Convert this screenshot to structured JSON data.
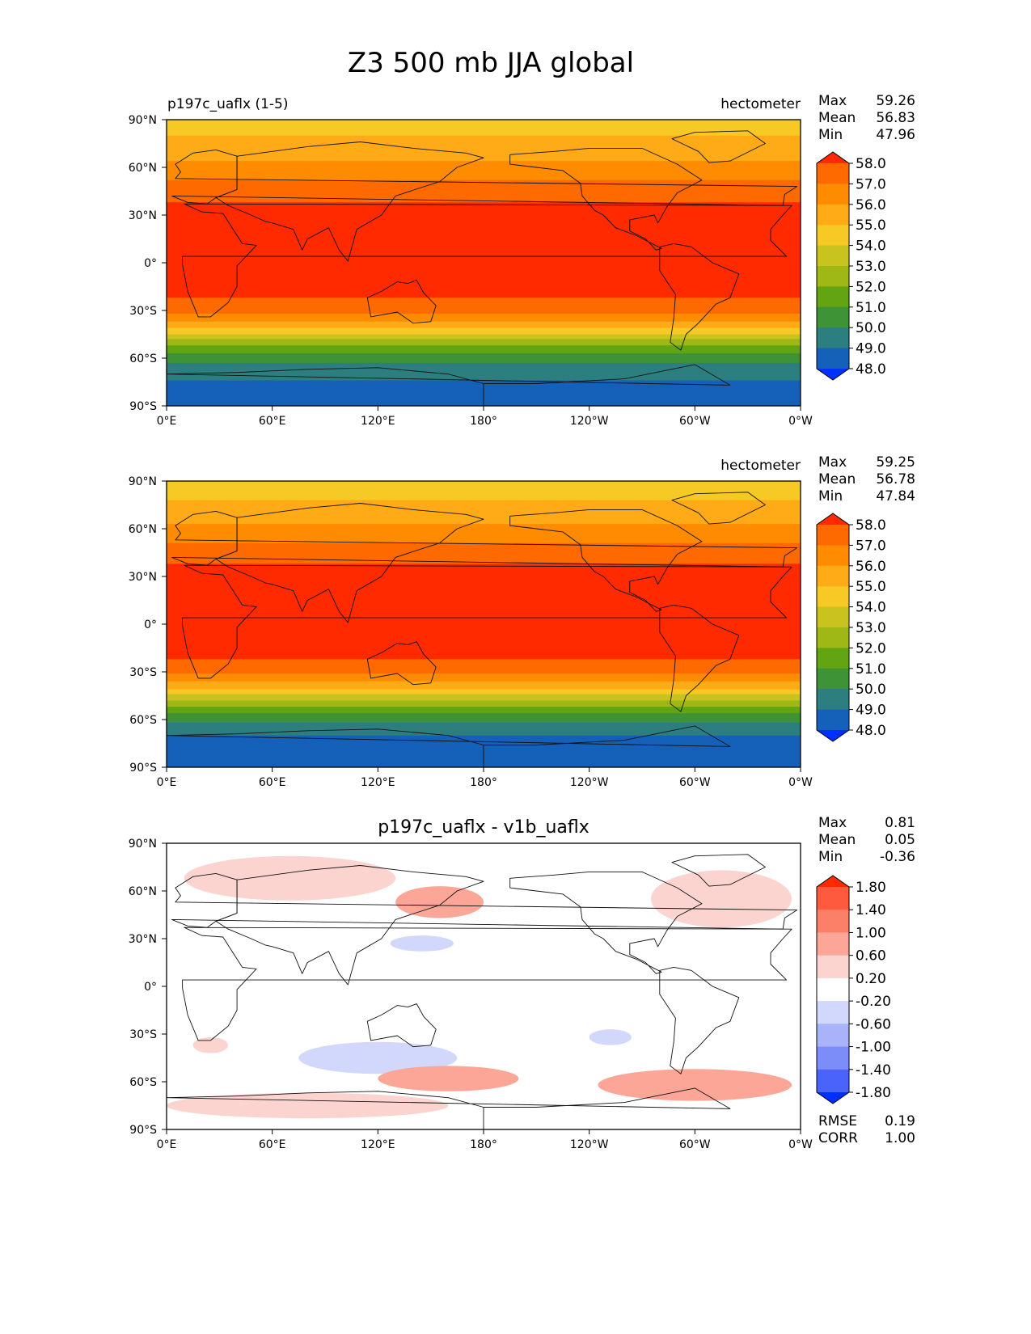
{
  "figure": {
    "title": "Z3 500 mb JJA global"
  },
  "chart_data": [
    {
      "type": "heatmap",
      "panel": "test",
      "title_left": "p197c_uaflx (1-5)",
      "units": "hectometer",
      "stats": {
        "max_label": "Max",
        "max": "59.26",
        "mean_label": "Mean",
        "mean": "56.83",
        "min_label": "Min",
        "min": "47.96"
      },
      "x_ticks": [
        "0°E",
        "60°E",
        "120°E",
        "180°",
        "120°W",
        "60°W",
        "0°W"
      ],
      "y_ticks": [
        "90°N",
        "60°N",
        "30°N",
        "0°",
        "30°S",
        "60°S",
        "90°S"
      ],
      "colorbar": {
        "levels": [
          "58.0",
          "57.0",
          "56.0",
          "55.0",
          "54.0",
          "53.0",
          "52.0",
          "51.0",
          "50.0",
          "49.0",
          "48.0"
        ],
        "colors": [
          "#ff2a00",
          "#ff6a00",
          "#ff8c00",
          "#ffab17",
          "#f7c925",
          "#c9c320",
          "#a0b816",
          "#62a412",
          "#3d9335",
          "#2d7f7f",
          "#1560b8",
          "#0030ff"
        ]
      },
      "zonal_profile": [
        {
          "lat": 90,
          "value": 54.6
        },
        {
          "lat": 75,
          "value": 55.2
        },
        {
          "lat": 60,
          "value": 56.3
        },
        {
          "lat": 45,
          "value": 57.6
        },
        {
          "lat": 30,
          "value": 58.5
        },
        {
          "lat": 0,
          "value": 58.7
        },
        {
          "lat": -15,
          "value": 58.6
        },
        {
          "lat": -30,
          "value": 57.3
        },
        {
          "lat": -40,
          "value": 55.3
        },
        {
          "lat": -50,
          "value": 52.5
        },
        {
          "lat": -60,
          "value": 50.3
        },
        {
          "lat": -70,
          "value": 49.1
        },
        {
          "lat": -90,
          "value": 48.6
        }
      ]
    },
    {
      "type": "heatmap",
      "panel": "reference",
      "title_left": "",
      "units": "hectometer",
      "stats": {
        "max_label": "Max",
        "max": "59.25",
        "mean_label": "Mean",
        "mean": "56.78",
        "min_label": "Min",
        "min": "47.84"
      },
      "x_ticks": [
        "0°E",
        "60°E",
        "120°E",
        "180°",
        "120°W",
        "60°W",
        "0°W"
      ],
      "y_ticks": [
        "90°N",
        "60°N",
        "30°N",
        "0°",
        "30°S",
        "60°S",
        "90°S"
      ],
      "colorbar": {
        "levels": [
          "58.0",
          "57.0",
          "56.0",
          "55.0",
          "54.0",
          "53.0",
          "52.0",
          "51.0",
          "50.0",
          "49.0",
          "48.0"
        ],
        "colors": [
          "#ff2a00",
          "#ff6a00",
          "#ff8c00",
          "#ffab17",
          "#f7c925",
          "#c9c320",
          "#a0b816",
          "#62a412",
          "#3d9335",
          "#2d7f7f",
          "#1560b8",
          "#0030ff"
        ]
      },
      "zonal_profile": [
        {
          "lat": 90,
          "value": 54.5
        },
        {
          "lat": 75,
          "value": 55.1
        },
        {
          "lat": 60,
          "value": 56.2
        },
        {
          "lat": 45,
          "value": 57.5
        },
        {
          "lat": 30,
          "value": 58.5
        },
        {
          "lat": 0,
          "value": 58.7
        },
        {
          "lat": -15,
          "value": 58.6
        },
        {
          "lat": -30,
          "value": 57.3
        },
        {
          "lat": -40,
          "value": 55.2
        },
        {
          "lat": -50,
          "value": 52.4
        },
        {
          "lat": -60,
          "value": 50.2
        },
        {
          "lat": -70,
          "value": 49.0
        },
        {
          "lat": -90,
          "value": 48.5
        }
      ]
    },
    {
      "type": "heatmap",
      "panel": "difference",
      "title_center": "p197c_uaflx - v1b_uaflx",
      "stats": {
        "max_label": "Max",
        "max": "0.81",
        "mean_label": "Mean",
        "mean": "0.05",
        "min_label": "Min",
        "min": "-0.36"
      },
      "x_ticks": [
        "0°E",
        "60°E",
        "120°E",
        "180°",
        "120°W",
        "60°W",
        "0°W"
      ],
      "y_ticks": [
        "90°N",
        "60°N",
        "30°N",
        "0°",
        "30°S",
        "60°S",
        "90°S"
      ],
      "colorbar": {
        "levels": [
          "1.80",
          "1.40",
          "1.00",
          "0.60",
          "0.20",
          "-0.20",
          "-0.60",
          "-1.00",
          "-1.40",
          "-1.80"
        ],
        "colors": [
          "#ff2a00",
          "#fd5a3e",
          "#fc8068",
          "#fba696",
          "#fcd4cf",
          "#ffffff",
          "#d2d8fb",
          "#a8b3fa",
          "#7c8cf9",
          "#4a64fb",
          "#0030ff"
        ]
      },
      "metrics": {
        "rmse_label": "RMSE",
        "rmse": "0.19",
        "corr_label": "CORR",
        "corr": "1.00"
      },
      "anomalies": [
        {
          "name": "north-pacific",
          "lon": 155,
          "lat": 53,
          "dlon": 25,
          "dlat": 10,
          "value": 0.7
        },
        {
          "name": "north-atlantic",
          "lon": -45,
          "lat": 55,
          "dlon": 40,
          "dlat": 18,
          "value": 0.3
        },
        {
          "name": "eurasia-arctic",
          "lon": 70,
          "lat": 68,
          "dlon": 60,
          "dlat": 14,
          "value": 0.3
        },
        {
          "name": "west-pacific",
          "lon": 145,
          "lat": 27,
          "dlon": 18,
          "dlat": 5,
          "value": -0.3
        },
        {
          "name": "south-indian",
          "lon": 120,
          "lat": -45,
          "dlon": 45,
          "dlat": 10,
          "value": -0.3
        },
        {
          "name": "south-pacific",
          "lon": -60,
          "lat": -62,
          "dlon": 55,
          "dlat": 10,
          "value": 0.6
        },
        {
          "name": "southern-ocean",
          "lon": 160,
          "lat": -58,
          "dlon": 40,
          "dlat": 8,
          "value": 0.6
        },
        {
          "name": "antarctic",
          "lon": 80,
          "lat": -75,
          "dlon": 80,
          "dlat": 8,
          "value": 0.3
        },
        {
          "name": "subtropic-south",
          "lon": 25,
          "lat": -37,
          "dlon": 10,
          "dlat": 5,
          "value": 0.3
        },
        {
          "name": "subtropic-east",
          "lon": -108,
          "lat": -32,
          "dlon": 12,
          "dlat": 5,
          "value": -0.3
        }
      ]
    }
  ]
}
